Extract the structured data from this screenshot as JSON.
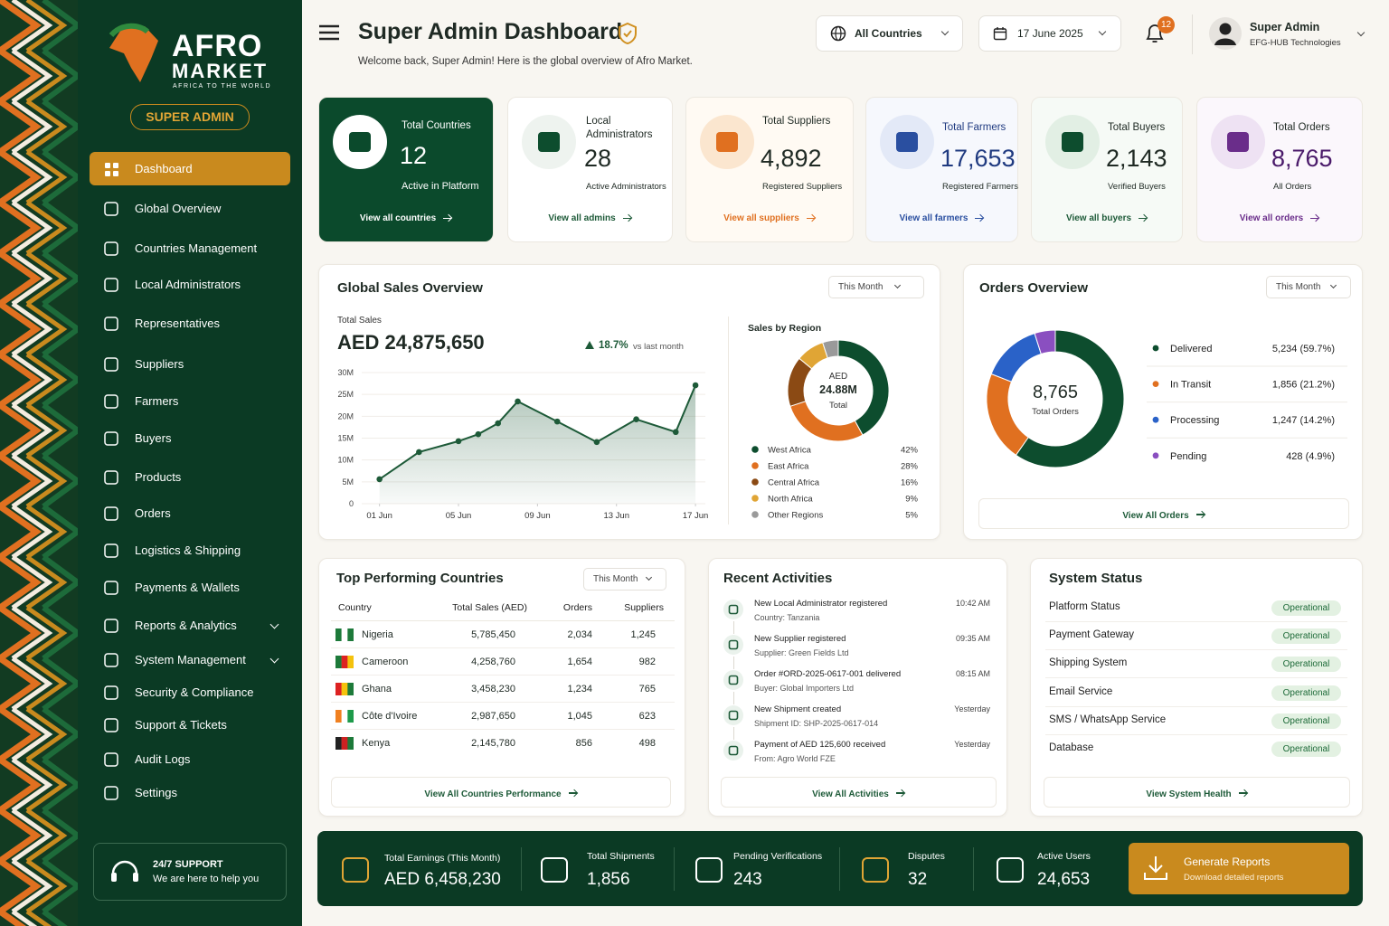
{
  "brand": {
    "name_line1": "AFRO",
    "name_line2": "MARKET",
    "tagline": "AFRICA TO THE WORLD",
    "role": "SUPER ADMIN"
  },
  "nav": [
    {
      "label": "Dashboard",
      "active": true
    },
    {
      "label": "Global Overview"
    },
    {
      "label": "Countries Management"
    },
    {
      "label": "Local Administrators"
    },
    {
      "label": "Representatives"
    },
    {
      "label": "Suppliers"
    },
    {
      "label": "Farmers"
    },
    {
      "label": "Buyers"
    },
    {
      "label": "Products"
    },
    {
      "label": "Orders"
    },
    {
      "label": "Logistics & Shipping"
    },
    {
      "label": "Payments & Wallets"
    },
    {
      "label": "Reports & Analytics",
      "expandable": true
    },
    {
      "label": "System Management",
      "expandable": true
    },
    {
      "label": "Security & Compliance"
    },
    {
      "label": "Support & Tickets"
    },
    {
      "label": "Audit Logs"
    },
    {
      "label": "Settings"
    }
  ],
  "support": {
    "title": "24/7 SUPPORT",
    "text": "We are here to help you"
  },
  "header": {
    "title": "Super Admin Dashboard",
    "subtitle": "Welcome back, Super Admin! Here is the global overview of Afro Market.",
    "country_filter": "All Countries",
    "date": "17 June 2025",
    "notifications": 12,
    "user_name": "Super Admin",
    "user_org": "EFG-HUB Technologies"
  },
  "stats": [
    {
      "label": "Total Countries",
      "value": "12",
      "caption": "Active in Platform",
      "link": "View all countries"
    },
    {
      "label": "Local Administrators",
      "value": "28",
      "caption": "Active Administrators",
      "link": "View all admins"
    },
    {
      "label": "Total Suppliers",
      "value": "4,892",
      "caption": "Registered Suppliers",
      "link": "View all suppliers"
    },
    {
      "label": "Total Farmers",
      "value": "17,653",
      "caption": "Registered Farmers",
      "link": "View all farmers"
    },
    {
      "label": "Total Buyers",
      "value": "2,143",
      "caption": "Verified Buyers",
      "link": "View all buyers"
    },
    {
      "label": "Total Orders",
      "value": "8,765",
      "caption": "All Orders",
      "link": "View all orders"
    }
  ],
  "sales": {
    "title": "Global Sales Overview",
    "filter": "This Month",
    "total_label": "Total Sales",
    "total": "AED 24,875,650",
    "change": "18.7%",
    "change_note": "vs last month"
  },
  "orders": {
    "title": "Orders Overview",
    "filter": "This Month",
    "link": "View All Orders"
  },
  "chart_data": [
    {
      "type": "line",
      "x": [
        1,
        3,
        5,
        6,
        7,
        8,
        10,
        12,
        14,
        16,
        17
      ],
      "values": [
        5.6,
        11.8,
        14.3,
        15.9,
        18.4,
        23.4,
        18.8,
        14.1,
        19.3,
        16.4,
        27.1
      ],
      "color": "#1d5a38",
      "xlim": [
        0.1,
        17.5
      ],
      "xticks": [
        {
          "value": 1,
          "label": "01 Jun"
        },
        {
          "value": 5,
          "label": "05 Jun"
        },
        {
          "value": 9,
          "label": "09 Jun"
        },
        {
          "value": 13,
          "label": "13 Jun"
        },
        {
          "value": 17,
          "label": "17 Jun"
        }
      ],
      "ylim": [
        0,
        30
      ],
      "yticks": [
        0,
        {
          "value": 5,
          "label": "5M"
        },
        {
          "value": 10,
          "label": "10M"
        },
        {
          "value": 15,
          "label": "15M"
        },
        {
          "value": 20,
          "label": "20M"
        },
        {
          "value": 25,
          "label": "25M"
        },
        {
          "value": 30,
          "label": "30M"
        }
      ]
    },
    {
      "type": "pie",
      "title": "Sales by Region",
      "center_prefix": "AED",
      "center_value": "24.88M",
      "center_caption": "Total",
      "categories": [
        "West Africa",
        "East Africa",
        "Central Africa",
        "North Africa",
        "Other Regions"
      ],
      "values": [
        42,
        28,
        16,
        9,
        5
      ],
      "value_labels": [
        "42%",
        "28%",
        "16%",
        "9%",
        "5%"
      ],
      "colors": [
        "#0d4d2e",
        "#e07020",
        "#8b4a14",
        "#e0a535",
        "#9a9a9a"
      ]
    },
    {
      "type": "pie",
      "center_value": "8,765",
      "center_caption": "Total Orders",
      "categories": [
        "Delivered",
        "In Transit",
        "Processing",
        "Pending"
      ],
      "values": [
        5234,
        1856,
        1247,
        428
      ],
      "value_labels": [
        "5,234 (59.7%)",
        "1,856 (21.2%)",
        "1,247 (14.2%)",
        "428 (4.9%)"
      ],
      "colors": [
        "#0d4d2e",
        "#e07020",
        "#2a62c8",
        "#8a4fc0"
      ]
    }
  ],
  "countries": {
    "title": "Top Performing Countries",
    "filter": "This Month",
    "columns": [
      "Country",
      "Total Sales (AED)",
      "Orders",
      "Suppliers"
    ],
    "rows": [
      [
        "Nigeria",
        "5,785,450",
        "2,034",
        "1,245"
      ],
      [
        "Cameroon",
        "4,258,760",
        "1,654",
        "982"
      ],
      [
        "Ghana",
        "3,458,230",
        "1,234",
        "765"
      ],
      [
        "Côte d'Ivoire",
        "2,987,650",
        "1,045",
        "623"
      ],
      [
        "Kenya",
        "2,145,780",
        "856",
        "498"
      ]
    ],
    "link": "View All Countries Performance"
  },
  "activities": {
    "title": "Recent Activities",
    "items": [
      {
        "title": "New Local Administrator registered",
        "detail": "Country: Tanzania",
        "time": "10:42 AM"
      },
      {
        "title": "New Supplier registered",
        "detail": "Supplier: Green Fields Ltd",
        "time": "09:35 AM"
      },
      {
        "title": "Order #ORD-2025-0617-001 delivered",
        "detail": "Buyer: Global Importers Ltd",
        "time": "08:15 AM"
      },
      {
        "title": "New Shipment created",
        "detail": "Shipment ID: SHP-2025-0617-014",
        "time": "Yesterday"
      },
      {
        "title": "Payment of AED 125,600 received",
        "detail": "From: Agro World FZE",
        "time": "Yesterday"
      }
    ],
    "link": "View All Activities"
  },
  "system": {
    "title": "System Status",
    "items": [
      {
        "name": "Platform Status",
        "status": "Operational"
      },
      {
        "name": "Payment Gateway",
        "status": "Operational"
      },
      {
        "name": "Shipping System",
        "status": "Operational"
      },
      {
        "name": "Email Service",
        "status": "Operational"
      },
      {
        "name": "SMS / WhatsApp Service",
        "status": "Operational"
      },
      {
        "name": "Database",
        "status": "Operational"
      }
    ],
    "link": "View System Health"
  },
  "summary": {
    "items": [
      {
        "label": "Total Earnings (This Month)",
        "value": "AED 6,458,230"
      },
      {
        "label": "Total Shipments",
        "value": "1,856"
      },
      {
        "label": "Pending Verifications",
        "value": "243"
      },
      {
        "label": "Disputes",
        "value": "32"
      },
      {
        "label": "Active Users",
        "value": "24,653"
      }
    ],
    "button_title": "Generate Reports",
    "button_text": "Download detailed reports"
  }
}
